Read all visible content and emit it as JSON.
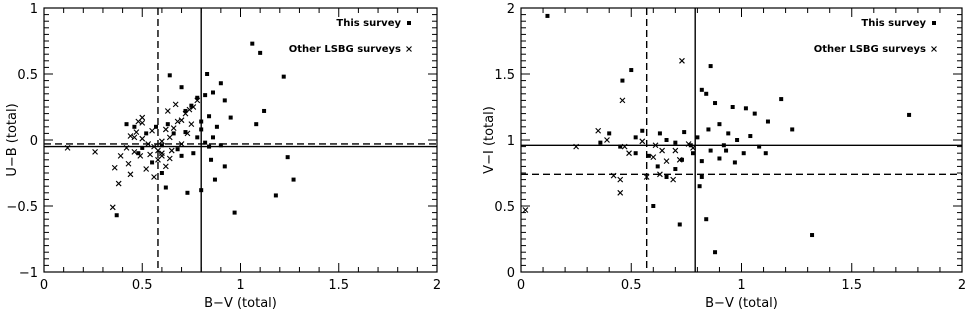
{
  "chart_data": [
    {
      "type": "scatter",
      "xlabel": "B−V (total)",
      "ylabel": "U−B (total)",
      "xlim": [
        0,
        2
      ],
      "ylim": [
        -1,
        1
      ],
      "xticks": [
        0,
        0.5,
        1,
        1.5,
        2
      ],
      "xtick_labels": [
        "0",
        "0.5",
        "1",
        "1.5",
        "2"
      ],
      "yticks": [
        -1,
        -0.5,
        0,
        0.5,
        1
      ],
      "ytick_labels": [
        "−1",
        "−0.5",
        "0",
        "0.5",
        "1"
      ],
      "reference_lines": {
        "vertical_solid": 0.8,
        "vertical_dashed": 0.58,
        "horizontal_solid": -0.05,
        "horizontal_dashed": -0.03
      },
      "legend": [
        {
          "label": "This survey",
          "marker": "square"
        },
        {
          "label": "Other LSBG surveys",
          "marker": "cross"
        }
      ],
      "series": [
        {
          "name": "This survey",
          "marker": "square",
          "points": [
            [
              0.64,
              0.49
            ],
            [
              0.7,
              0.4
            ],
            [
              0.83,
              0.5
            ],
            [
              0.9,
              0.43
            ],
            [
              1.06,
              0.73
            ],
            [
              1.1,
              0.66
            ],
            [
              1.22,
              0.48
            ],
            [
              0.82,
              0.34
            ],
            [
              0.86,
              0.36
            ],
            [
              0.78,
              0.32
            ],
            [
              0.75,
              0.26
            ],
            [
              0.84,
              0.18
            ],
            [
              0.92,
              0.3
            ],
            [
              0.72,
              0.22
            ],
            [
              0.8,
              0.14
            ],
            [
              0.88,
              0.1
            ],
            [
              0.95,
              0.17
            ],
            [
              1.08,
              0.12
            ],
            [
              1.12,
              0.22
            ],
            [
              0.63,
              0.12
            ],
            [
              0.66,
              0.05
            ],
            [
              0.72,
              0.06
            ],
            [
              0.78,
              0.02
            ],
            [
              0.82,
              -0.02
            ],
            [
              0.86,
              0.02
            ],
            [
              0.9,
              -0.04
            ],
            [
              0.76,
              -0.1
            ],
            [
              0.7,
              -0.12
            ],
            [
              0.6,
              -0.04
            ],
            [
              0.57,
              0.1
            ],
            [
              0.52,
              0.05
            ],
            [
              0.48,
              -0.1
            ],
            [
              0.55,
              -0.17
            ],
            [
              0.6,
              -0.25
            ],
            [
              0.62,
              -0.36
            ],
            [
              0.46,
              0.1
            ],
            [
              0.42,
              0.12
            ],
            [
              0.5,
              -0.06
            ],
            [
              0.85,
              -0.15
            ],
            [
              0.92,
              -0.2
            ],
            [
              0.87,
              -0.3
            ],
            [
              0.8,
              -0.38
            ],
            [
              0.73,
              -0.4
            ],
            [
              0.97,
              -0.55
            ],
            [
              1.18,
              -0.42
            ],
            [
              1.24,
              -0.13
            ],
            [
              1.27,
              -0.3
            ],
            [
              0.37,
              -0.57
            ],
            [
              0.68,
              -0.07
            ],
            [
              0.84,
              -0.05
            ],
            [
              0.8,
              0.08
            ]
          ]
        },
        {
          "name": "Other LSBG surveys",
          "marker": "cross",
          "points": [
            [
              0.12,
              -0.06
            ],
            [
              0.26,
              -0.09
            ],
            [
              0.36,
              -0.21
            ],
            [
              0.38,
              -0.33
            ],
            [
              0.35,
              -0.51
            ],
            [
              0.39,
              -0.12
            ],
            [
              0.43,
              -0.18
            ],
            [
              0.42,
              -0.06
            ],
            [
              0.44,
              0.03
            ],
            [
              0.47,
              0.06
            ],
            [
              0.48,
              0.14
            ],
            [
              0.5,
              0.13
            ],
            [
              0.5,
              0.01
            ],
            [
              0.53,
              -0.03
            ],
            [
              0.55,
              0.07
            ],
            [
              0.46,
              -0.09
            ],
            [
              0.49,
              -0.12
            ],
            [
              0.54,
              -0.11
            ],
            [
              0.56,
              -0.05
            ],
            [
              0.58,
              -0.08
            ],
            [
              0.6,
              -0.12
            ],
            [
              0.6,
              -0.01
            ],
            [
              0.62,
              0.08
            ],
            [
              0.64,
              0.02
            ],
            [
              0.66,
              0.09
            ],
            [
              0.68,
              0.14
            ],
            [
              0.7,
              0.15
            ],
            [
              0.72,
              0.2
            ],
            [
              0.74,
              0.23
            ],
            [
              0.76,
              0.25
            ],
            [
              0.78,
              0.3
            ],
            [
              0.75,
              0.12
            ],
            [
              0.73,
              0.05
            ],
            [
              0.7,
              -0.03
            ],
            [
              0.65,
              -0.08
            ],
            [
              0.64,
              -0.14
            ],
            [
              0.67,
              0.27
            ],
            [
              0.63,
              0.22
            ],
            [
              0.58,
              -0.15
            ],
            [
              0.62,
              -0.2
            ],
            [
              0.52,
              -0.22
            ],
            [
              0.44,
              -0.26
            ],
            [
              0.56,
              -0.28
            ],
            [
              0.6,
              -0.1
            ],
            [
              0.5,
              0.17
            ],
            [
              0.46,
              0.02
            ]
          ]
        }
      ]
    },
    {
      "type": "scatter",
      "xlabel": "B−V (total)",
      "ylabel": "V−I (total)",
      "xlim": [
        0,
        2
      ],
      "ylim": [
        0,
        2
      ],
      "xticks": [
        0,
        0.5,
        1,
        1.5,
        2
      ],
      "xtick_labels": [
        "0",
        "0.5",
        "1",
        "1.5",
        "2"
      ],
      "yticks": [
        0,
        0.5,
        1,
        1.5,
        2
      ],
      "ytick_labels": [
        "0",
        "0.5",
        "1",
        "1.5",
        "2"
      ],
      "reference_lines": {
        "vertical_solid": 0.79,
        "vertical_dashed": 0.57,
        "horizontal_solid": 0.96,
        "horizontal_dashed": 0.74
      },
      "legend": [
        {
          "label": "This survey",
          "marker": "square"
        },
        {
          "label": "Other LSBG surveys",
          "marker": "cross"
        }
      ],
      "series": [
        {
          "name": "This survey",
          "marker": "square",
          "points": [
            [
              0.12,
              1.94
            ],
            [
              0.5,
              1.53
            ],
            [
              0.46,
              1.45
            ],
            [
              0.82,
              1.38
            ],
            [
              0.86,
              1.56
            ],
            [
              0.84,
              1.35
            ],
            [
              0.88,
              1.28
            ],
            [
              0.96,
              1.25
            ],
            [
              1.02,
              1.24
            ],
            [
              1.06,
              1.2
            ],
            [
              1.12,
              1.14
            ],
            [
              1.18,
              1.31
            ],
            [
              1.23,
              1.08
            ],
            [
              1.76,
              1.19
            ],
            [
              0.52,
              1.02
            ],
            [
              0.55,
              1.07
            ],
            [
              0.63,
              1.05
            ],
            [
              0.66,
              1.0
            ],
            [
              0.7,
              0.98
            ],
            [
              0.74,
              1.06
            ],
            [
              0.77,
              0.96
            ],
            [
              0.8,
              1.02
            ],
            [
              0.85,
              1.08
            ],
            [
              0.9,
              1.12
            ],
            [
              0.94,
              1.05
            ],
            [
              0.98,
              1.0
            ],
            [
              1.04,
              1.03
            ],
            [
              1.08,
              0.95
            ],
            [
              0.4,
              1.05
            ],
            [
              0.36,
              0.98
            ],
            [
              0.45,
              0.95
            ],
            [
              0.52,
              0.9
            ],
            [
              0.58,
              0.88
            ],
            [
              0.62,
              0.8
            ],
            [
              0.66,
              0.72
            ],
            [
              0.7,
              0.78
            ],
            [
              0.73,
              0.85
            ],
            [
              0.78,
              0.9
            ],
            [
              0.82,
              0.84
            ],
            [
              0.86,
              0.92
            ],
            [
              0.9,
              0.86
            ],
            [
              0.93,
              0.92
            ],
            [
              0.97,
              0.83
            ],
            [
              1.01,
              0.9
            ],
            [
              1.11,
              0.9
            ],
            [
              0.6,
              0.5
            ],
            [
              0.72,
              0.36
            ],
            [
              0.81,
              0.65
            ],
            [
              0.84,
              0.4
            ],
            [
              0.88,
              0.15
            ],
            [
              1.32,
              0.28
            ],
            [
              0.92,
              0.96
            ],
            [
              0.82,
              0.72
            ]
          ]
        },
        {
          "name": "Other LSBG surveys",
          "marker": "cross",
          "points": [
            [
              0.02,
              0.47
            ],
            [
              0.25,
              0.95
            ],
            [
              0.35,
              1.07
            ],
            [
              0.39,
              1.0
            ],
            [
              0.42,
              0.73
            ],
            [
              0.45,
              0.7
            ],
            [
              0.46,
              1.3
            ],
            [
              0.45,
              0.6
            ],
            [
              0.47,
              0.95
            ],
            [
              0.49,
              0.9
            ],
            [
              0.55,
              0.99
            ],
            [
              0.6,
              0.87
            ],
            [
              0.63,
              0.74
            ],
            [
              0.66,
              0.84
            ],
            [
              0.7,
              0.92
            ],
            [
              0.72,
              0.85
            ],
            [
              0.73,
              1.6
            ],
            [
              0.76,
              0.97
            ],
            [
              0.78,
              0.94
            ],
            [
              0.69,
              0.7
            ],
            [
              0.64,
              0.92
            ],
            [
              0.57,
              0.72
            ],
            [
              0.61,
              0.96
            ]
          ]
        }
      ]
    }
  ]
}
